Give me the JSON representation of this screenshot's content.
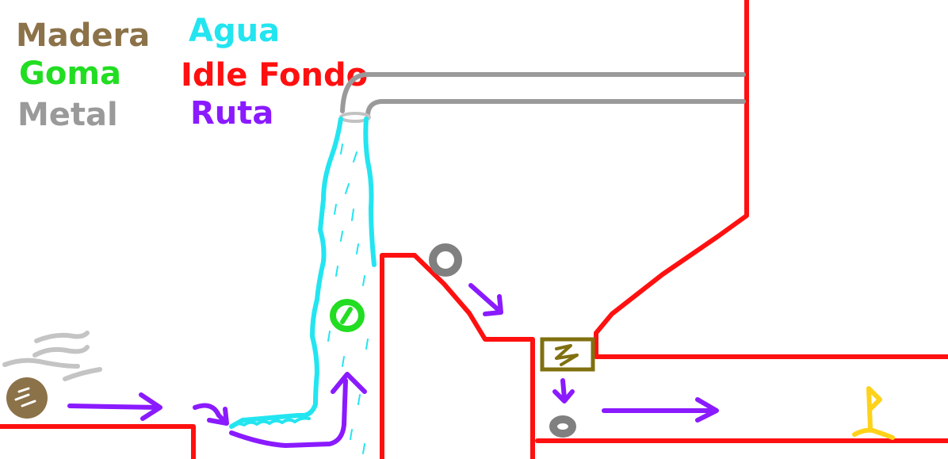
{
  "legend": {
    "wood": {
      "label": "Madera",
      "color": "#8c7249"
    },
    "rubber": {
      "label": "Goma",
      "color": "#22dd22"
    },
    "metal": {
      "label": "Metal",
      "color": "#9a9a9a"
    },
    "water": {
      "label": "Agua",
      "color": "#22e5f0"
    },
    "idle_background": {
      "label": "Idle Fondo",
      "color": "#ff1010"
    },
    "path": {
      "label": "Ruta",
      "color": "#8a1aff"
    }
  },
  "colors": {
    "wood_block": "#807010",
    "goal_flag": "#ffd21a",
    "wind": "#c4c4c4"
  },
  "icons": {
    "trampoline": "zigzag-spring",
    "goal": "flag"
  }
}
